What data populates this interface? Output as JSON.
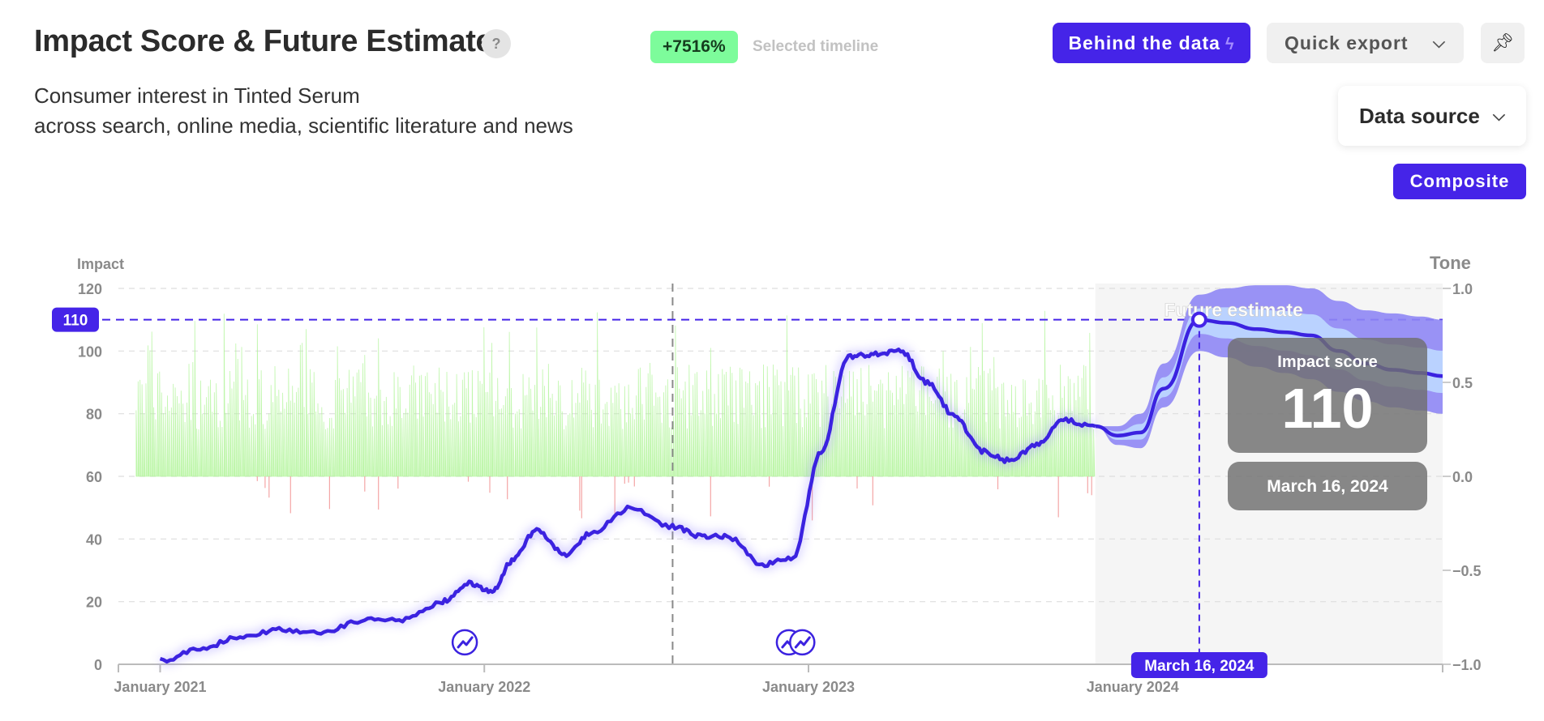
{
  "header": {
    "title": "Impact Score & Future Estimate",
    "help_label": "?",
    "growth_badge": "+7516%",
    "growth_label": "Selected timeline",
    "subtitle_line1": "Consumer interest in Tinted Serum",
    "subtitle_line2": "across search, online media, scientific literature and news"
  },
  "toolbar": {
    "behind_data_label": "Behind the data",
    "quick_export_label": "Quick export",
    "data_source_label": "Data source",
    "composite_label": "Composite",
    "icons": [
      "bolt-icon",
      "chevron-down-icon",
      "pin-icon",
      "trend-marker-icon"
    ]
  },
  "colors": {
    "accent": "#4524e8",
    "impact_line": "#3b22e0",
    "tone_positive": "#b3f59c",
    "tone_negative": "#f4a6a6",
    "forecast_outer": "#8f87f5",
    "forecast_inner": "#bcd6ff",
    "future_region": "#f5f5f5"
  },
  "chart_data": {
    "type": "line",
    "left_axis": {
      "label": "Impact",
      "ticks": [
        0,
        20,
        40,
        60,
        80,
        100,
        120
      ],
      "range": [
        0,
        120
      ]
    },
    "right_axis": {
      "label": "Tone",
      "ticks": [
        "1.0",
        "0.5",
        "0.0",
        "−0.5",
        "−1.0"
      ],
      "range": [
        -1,
        1
      ]
    },
    "x_axis": {
      "range": [
        "2020-11-15",
        "2024-12-15"
      ],
      "ticks": [
        "January 2021",
        "January 2022",
        "January 2023",
        "January 2024"
      ],
      "tick_dates": [
        "2021-01-01",
        "2022-01-01",
        "2023-01-01",
        "2024-01-01"
      ]
    },
    "grid": true,
    "reference_value": {
      "label": "110",
      "value": 110
    },
    "selected_date": "2022-08-01",
    "forecast_start": "2023-11-20",
    "future_label": "Future estimate",
    "series": [
      {
        "name": "Impact score",
        "x": [
          "2021-01-01",
          "2021-02-15",
          "2021-04-01",
          "2021-05-15",
          "2021-07-01",
          "2021-08-15",
          "2021-10-01",
          "2021-11-15",
          "2021-12-15",
          "2022-01-10",
          "2022-02-01",
          "2022-03-01",
          "2022-04-01",
          "2022-05-01",
          "2022-06-15",
          "2022-08-01",
          "2022-09-01",
          "2022-10-01",
          "2022-11-10",
          "2022-12-15",
          "2023-01-15",
          "2023-02-15",
          "2023-03-15",
          "2023-04-15",
          "2023-05-15",
          "2023-06-15",
          "2023-07-15",
          "2023-08-15",
          "2023-09-15",
          "2023-10-15",
          "2023-11-20"
        ],
        "y": [
          1,
          5,
          9,
          11,
          10,
          14,
          14,
          20,
          26,
          23,
          33,
          43,
          35,
          42,
          50,
          44,
          41,
          41,
          32,
          34,
          68,
          98,
          99,
          100,
          90,
          79,
          68,
          65,
          70,
          78,
          76
        ]
      },
      {
        "name": "Future estimate",
        "x": [
          "2023-11-20",
          "2023-12-15",
          "2024-01-10",
          "2024-02-05",
          "2024-03-16",
          "2024-04-15",
          "2024-05-20",
          "2024-06-20",
          "2024-07-20",
          "2024-08-20",
          "2024-09-20",
          "2024-10-20",
          "2024-11-20",
          "2024-12-15"
        ],
        "y": [
          76,
          73,
          74,
          88,
          110,
          109,
          107,
          106,
          105,
          100,
          96,
          94,
          93,
          92
        ],
        "lower": [
          76,
          70,
          69,
          82,
          100,
          98,
          95,
          93,
          91,
          87,
          84,
          82,
          81,
          80
        ],
        "upper": [
          76,
          76,
          80,
          96,
          118,
          120,
          121,
          121,
          120,
          116,
          113,
          112,
          111,
          110
        ]
      }
    ],
    "markers": [
      {
        "date": "2021-12-10",
        "value": 7,
        "icon": "trend-marker-icon"
      },
      {
        "date": "2022-12-10",
        "value": 7,
        "icon": "trend-marker-icon"
      },
      {
        "date": "2022-12-25",
        "value": 7,
        "icon": "trend-marker-icon"
      }
    ],
    "tooltip": {
      "date": "2024-03-16",
      "value": 110,
      "title": "Impact score",
      "value_label": "110",
      "date_label": "March 16, 2024"
    },
    "x_highlight_label": "March 16, 2024"
  }
}
